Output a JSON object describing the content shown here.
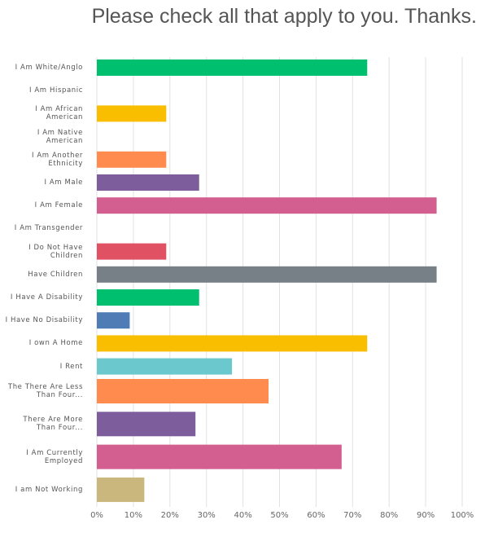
{
  "chart_data": {
    "type": "bar",
    "orientation": "horizontal",
    "title": "Please check all that apply to you.  Thanks.",
    "categories": [
      "I Am White/Anglo",
      "I Am Hispanic",
      "I Am African American",
      "I Am Native American",
      "I Am Another Ethnicity",
      "I Am Male",
      "I Am Female",
      "I Am Transgender",
      "I Do Not Have Children",
      "Have Children",
      "I Have A Disability",
      "I Have No Disability",
      "I own A Home",
      "I Rent",
      "The  There Are Less Than Four...",
      "There Are More Than Four...",
      "I Am Currently Employed",
      "I am Not Working"
    ],
    "values": [
      74,
      0,
      19,
      0,
      19,
      28,
      93,
      0,
      19,
      93,
      28,
      9,
      74,
      37,
      47,
      27,
      67,
      13
    ],
    "colors": [
      "#00bf6f",
      "#f9be00",
      "#f9be00",
      "#f9be00",
      "#ff8b4f",
      "#7d5d9b",
      "#d25f90",
      "#d25f90",
      "#e05263",
      "#768086",
      "#00bf6f",
      "#507cb6",
      "#f9be00",
      "#6bc8cd",
      "#ff8b4f",
      "#7d5d9b",
      "#d25f90",
      "#c9b77d"
    ],
    "xlim": [
      0,
      100
    ],
    "xticks": [
      {
        "value": 0,
        "label": "0%"
      },
      {
        "value": 10,
        "label": "10%"
      },
      {
        "value": 20,
        "label": "20%"
      },
      {
        "value": 30,
        "label": "30%"
      },
      {
        "value": 40,
        "label": "40%"
      },
      {
        "value": 50,
        "label": "50%"
      },
      {
        "value": 60,
        "label": "60%"
      },
      {
        "value": 70,
        "label": "70%"
      },
      {
        "value": 80,
        "label": "80%"
      },
      {
        "value": 90,
        "label": "90%"
      },
      {
        "value": 100,
        "label": "100%"
      }
    ],
    "grid": true
  }
}
